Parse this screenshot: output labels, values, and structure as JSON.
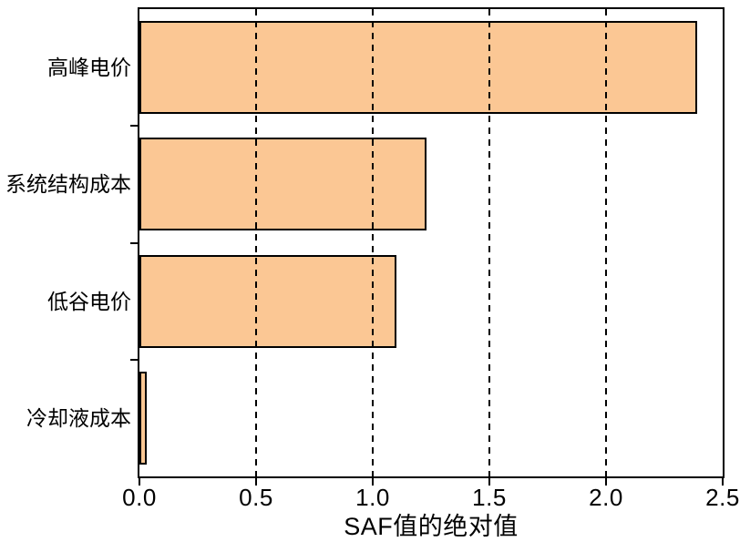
{
  "chart_data": {
    "type": "bar",
    "orientation": "horizontal",
    "title": "",
    "xlabel": "SAF值的绝对值",
    "ylabel": "",
    "categories": [
      "高峰电价",
      "系统结构成本",
      "低谷电价",
      "冷却液成本"
    ],
    "values": [
      2.39,
      1.23,
      1.1,
      0.03
    ],
    "xlim": [
      0,
      2.5
    ],
    "xticks": [
      0.0,
      0.5,
      1.0,
      1.5,
      2.0,
      2.5
    ],
    "xtick_labels": [
      "0.0",
      "0.5",
      "1.0",
      "1.5",
      "2.0",
      "2.5"
    ],
    "gridlines_x": [
      0.5,
      1.0,
      1.5,
      2.0
    ],
    "grid_style": "dashed",
    "legend_position": "none",
    "bar_fill_color": "#FBC794",
    "bar_border_color": "#000000",
    "axis_color": "#000000",
    "grid_color": "#000000",
    "background_color": "#ffffff"
  }
}
